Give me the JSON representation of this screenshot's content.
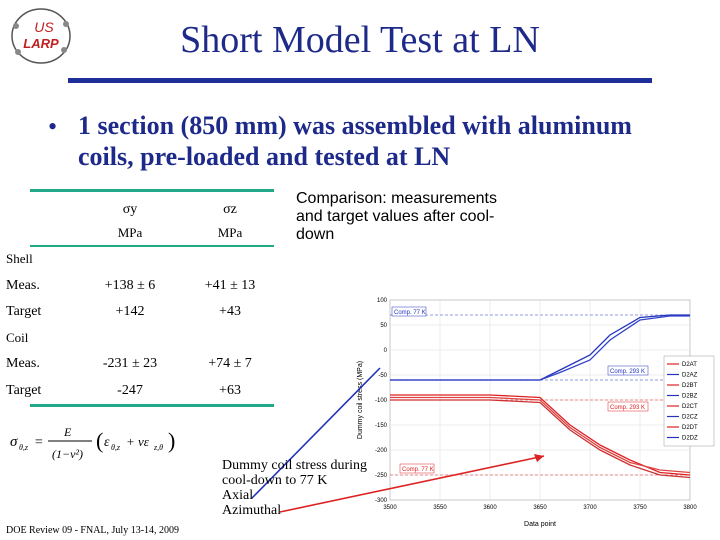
{
  "slide": {
    "title": "Short Model Test at LN",
    "bullet": "1 section (850 mm) was assembled with aluminum coils, pre-loaded and tested at LN",
    "logo_top": "US",
    "logo_bottom": "LARP",
    "comparison": "Comparison: measurements and target values after cool-down",
    "callout_line1": "Dummy coil stress during",
    "callout_line2": "cool-down to 77 K",
    "callout_axial": "Axial",
    "callout_azimuthal": "Azimuthal",
    "footer": "DOE Review 09 - FNAL, July 13-14, 2009",
    "colors": {
      "title": "#1e2a8a",
      "rule": "#1f2f99",
      "table_rule": "#22aa88",
      "axial": "#2233bb",
      "azimuthal": "#dd2222"
    }
  },
  "table": {
    "col1": "σy",
    "col2": "σz",
    "unit1": "MPa",
    "unit2": "MPa",
    "shell_label": "Shell",
    "coil_label": "Coil",
    "rows": [
      {
        "label": "Meas.",
        "v1": "+138 ± 6",
        "v2": "+41 ± 13"
      },
      {
        "label": "Target",
        "v1": "+142",
        "v2": "+43"
      },
      {
        "label": "Meas.",
        "v1": "-231 ± 23",
        "v2": "+74 ± 7"
      },
      {
        "label": "Target",
        "v1": "-247",
        "v2": "+63"
      }
    ]
  },
  "chart_data": {
    "type": "line",
    "title": "",
    "xlabel": "Data point",
    "ylabel": "Dummy coil stress (MPa)",
    "xlim": [
      3500,
      3800
    ],
    "ylim": [
      -300,
      100
    ],
    "xticks": [
      "3500",
      "3550",
      "3600",
      "3650",
      "3700",
      "3750",
      "3800"
    ],
    "yticks": [
      "100",
      "50",
      "0",
      "-50",
      "-100",
      "-150",
      "-200",
      "-250",
      "-300"
    ],
    "annotations": [
      "Comp. 77 K",
      "Comp. 293 K",
      "Comp. 293 K",
      "Comp. 77 K"
    ],
    "legend": [
      "D2AT",
      "D2AZ",
      "D2BT",
      "D2BZ",
      "D2CT",
      "D2CZ",
      "D2DT",
      "D2DZ"
    ],
    "series": [
      {
        "name": "D2AZ (axial)",
        "x": [
          3500,
          3650,
          3670,
          3700,
          3720,
          3750,
          3780,
          3800
        ],
        "values": [
          -60,
          -60,
          -40,
          -10,
          30,
          65,
          70,
          70
        ]
      },
      {
        "name": "D2BZ (axial)",
        "x": [
          3500,
          3650,
          3670,
          3700,
          3720,
          3750,
          3780,
          3800
        ],
        "values": [
          -60,
          -60,
          -45,
          -20,
          20,
          60,
          68,
          68
        ]
      },
      {
        "name": "D2AT (azimuthal)",
        "x": [
          3500,
          3600,
          3650,
          3680,
          3710,
          3740,
          3770,
          3800
        ],
        "values": [
          -90,
          -90,
          -95,
          -150,
          -190,
          -220,
          -245,
          -250
        ]
      },
      {
        "name": "D2BT (azimuthal)",
        "x": [
          3500,
          3600,
          3650,
          3680,
          3710,
          3740,
          3770,
          3800
        ],
        "values": [
          -100,
          -100,
          -105,
          -160,
          -200,
          -230,
          -250,
          -255
        ]
      },
      {
        "name": "D2CT (azimuthal)",
        "x": [
          3500,
          3600,
          3650,
          3680,
          3710,
          3740,
          3770,
          3800
        ],
        "values": [
          -95,
          -95,
          -100,
          -155,
          -195,
          -225,
          -240,
          -245
        ]
      }
    ]
  }
}
